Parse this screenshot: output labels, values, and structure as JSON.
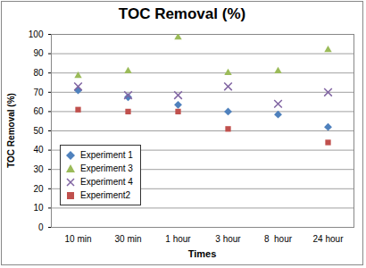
{
  "chart_data": {
    "type": "scatter",
    "title": "TOC Removal (%)",
    "x_label": "Times",
    "y_label": "TOC Removal (%)",
    "categories": [
      "10 min",
      "30 min",
      "1 hour",
      "3 hour",
      "8  hour",
      "24 hour"
    ],
    "series": [
      {
        "name": "Experiment 1",
        "color": "#4f81bd",
        "marker": "diamond",
        "values": [
          71,
          67.5,
          63.5,
          60,
          58.5,
          52
        ]
      },
      {
        "name": "Experiment 3",
        "color": "#9bbb59",
        "marker": "triangle",
        "values": [
          78.5,
          81,
          98.5,
          80,
          81,
          92
        ]
      },
      {
        "name": "Experiment 4",
        "color": "#8064a2",
        "marker": "cross",
        "values": [
          73,
          68.5,
          68.5,
          73,
          64,
          70
        ]
      },
      {
        "name": "Experiment2",
        "color": "#c0504d",
        "marker": "square",
        "values": [
          61,
          60,
          60,
          51,
          null,
          44
        ]
      }
    ],
    "ylim": [
      0,
      100
    ],
    "yticks": [
      0,
      10,
      20,
      30,
      40,
      50,
      60,
      70,
      80,
      90,
      100
    ],
    "grid": true,
    "legend": "lower left"
  }
}
